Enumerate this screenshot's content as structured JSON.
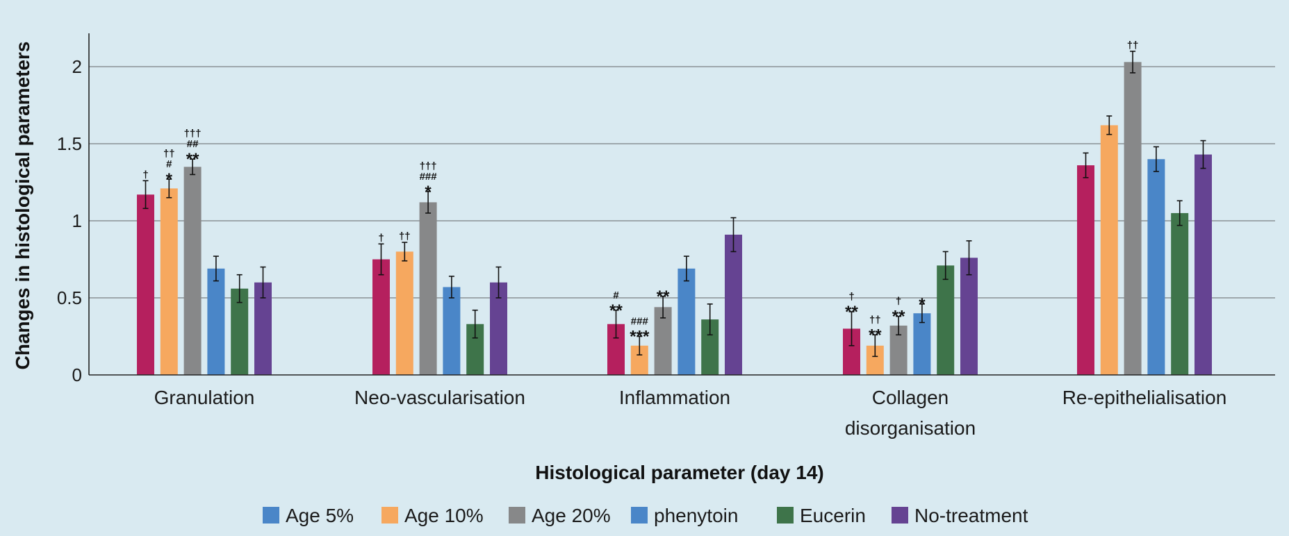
{
  "chart_data": {
    "type": "bar",
    "ylabel": "Changes in histological parameters",
    "xlabel": "Histological parameter (day 14)",
    "ylim": [
      0,
      2.2
    ],
    "yticks": [
      0,
      0.5,
      1,
      1.5,
      2
    ],
    "ytick_labels": [
      "0",
      "0.5",
      "1",
      "1.5",
      "2"
    ],
    "grid": true,
    "legend_position": "bottom",
    "categories": [
      [
        "Granulation"
      ],
      [
        "Neo-vascularisation"
      ],
      [
        "Inflammation"
      ],
      [
        "Collagen",
        "disorganisation"
      ],
      [
        "Re-epithelialisation"
      ]
    ],
    "series": [
      {
        "name": "Age 5%",
        "legend_color": "#4a86c8",
        "bar_color": "#b5205e",
        "values": [
          1.17,
          0.75,
          0.33,
          0.3,
          1.36
        ],
        "errors": [
          0.09,
          0.1,
          0.09,
          0.11,
          0.08
        ],
        "annotations": [
          [
            "†"
          ],
          [
            "†"
          ],
          [
            "#",
            "**"
          ],
          [
            "†",
            "**"
          ],
          []
        ]
      },
      {
        "name": "Age 10%",
        "legend_color": "#f6a85f",
        "bar_color": "#f6a85f",
        "values": [
          1.21,
          0.8,
          0.19,
          0.19,
          1.62
        ],
        "errors": [
          0.06,
          0.06,
          0.06,
          0.07,
          0.06
        ],
        "annotations": [
          [
            "††",
            "#",
            "*"
          ],
          [
            "††"
          ],
          [
            "###",
            "***"
          ],
          [
            "††",
            "**"
          ],
          []
        ]
      },
      {
        "name": "Age 20%",
        "legend_color": "#878889",
        "bar_color": "#878889",
        "values": [
          1.35,
          1.12,
          0.44,
          0.32,
          2.03
        ],
        "errors": [
          0.05,
          0.07,
          0.07,
          0.06,
          0.07
        ],
        "annotations": [
          [
            "†††",
            "##",
            "**"
          ],
          [
            "†††",
            "###",
            "*"
          ],
          [
            "**"
          ],
          [
            "†",
            "**"
          ],
          [
            "††"
          ]
        ]
      },
      {
        "name": "phenytoin",
        "legend_color": "#4a86c8",
        "bar_color": "#4a86c8",
        "values": [
          0.69,
          0.57,
          0.69,
          0.4,
          1.4
        ],
        "errors": [
          0.08,
          0.07,
          0.08,
          0.06,
          0.08
        ],
        "annotations": [
          [],
          [],
          [],
          [
            "*"
          ],
          []
        ]
      },
      {
        "name": "Eucerin",
        "legend_color": "#3e744a",
        "bar_color": "#3e744a",
        "values": [
          0.56,
          0.33,
          0.36,
          0.71,
          1.05
        ],
        "errors": [
          0.09,
          0.09,
          0.1,
          0.09,
          0.08
        ],
        "annotations": [
          [],
          [],
          [],
          [],
          []
        ]
      },
      {
        "name": "No-treatment",
        "legend_color": "#654392",
        "bar_color": "#654392",
        "values": [
          0.6,
          0.6,
          0.91,
          0.76,
          1.43
        ],
        "errors": [
          0.1,
          0.1,
          0.11,
          0.11,
          0.09
        ],
        "annotations": [
          [],
          [],
          [],
          [],
          []
        ]
      }
    ]
  }
}
